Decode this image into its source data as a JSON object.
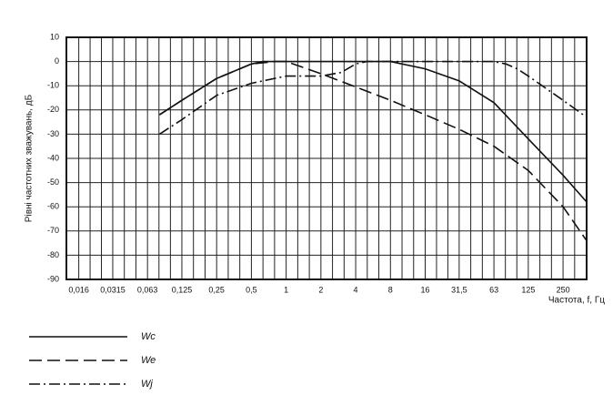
{
  "chart_data": {
    "type": "line",
    "y_label": "Рівні частотних зважувань, дБ",
    "x_label": "Частота, f, Гц",
    "log_x": true,
    "grid": true,
    "xlim": [
      0.0125,
      400
    ],
    "ylim": [
      -90,
      10
    ],
    "xticks": [
      {
        "value": 0.016,
        "label": "0,016"
      },
      {
        "value": 0.0315,
        "label": "0,0315"
      },
      {
        "value": 0.063,
        "label": "0,063"
      },
      {
        "value": 0.125,
        "label": "0,125"
      },
      {
        "value": 0.25,
        "label": "0,25"
      },
      {
        "value": 0.5,
        "label": "0,5"
      },
      1,
      2,
      4,
      8,
      16,
      {
        "value": 31.5,
        "label": "31,5"
      },
      63,
      125,
      250
    ],
    "yticks": [
      10,
      0,
      -10,
      -20,
      -30,
      -40,
      -50,
      -60,
      -70,
      -80,
      -90
    ],
    "series": [
      {
        "name": "Wc",
        "color": "#111111",
        "line_style": "solid",
        "x": [
          0.08,
          0.125,
          0.25,
          0.5,
          0.63,
          1,
          2,
          4,
          8,
          16,
          31.5,
          63,
          125,
          250,
          400
        ],
        "values": [
          -22,
          -16,
          -7,
          -1,
          0,
          0,
          0,
          0,
          0,
          -3,
          -8,
          -17,
          -32,
          -47,
          -58
        ]
      },
      {
        "name": "We",
        "color": "#111111",
        "line_style": "dashed",
        "x": [
          0.08,
          0.125,
          0.25,
          0.5,
          0.8,
          1,
          2,
          4,
          8,
          16,
          31.5,
          63,
          125,
          250,
          400
        ],
        "values": [
          -22,
          -16,
          -7,
          -1,
          0,
          0,
          -5,
          -10.5,
          -16,
          -22,
          -28,
          -35,
          -45,
          -60,
          -74
        ]
      },
      {
        "name": "Wj",
        "color": "#111111",
        "line_style": "dashdot",
        "x": [
          0.08,
          0.125,
          0.25,
          0.5,
          1,
          2,
          3,
          4,
          5,
          8,
          16,
          31.5,
          63,
          80,
          100,
          125,
          250,
          400
        ],
        "values": [
          -30,
          -24,
          -14,
          -9,
          -6,
          -6,
          -4.5,
          -1,
          0,
          0,
          0,
          0,
          0,
          -1,
          -3,
          -6,
          -16,
          -23
        ]
      }
    ]
  }
}
